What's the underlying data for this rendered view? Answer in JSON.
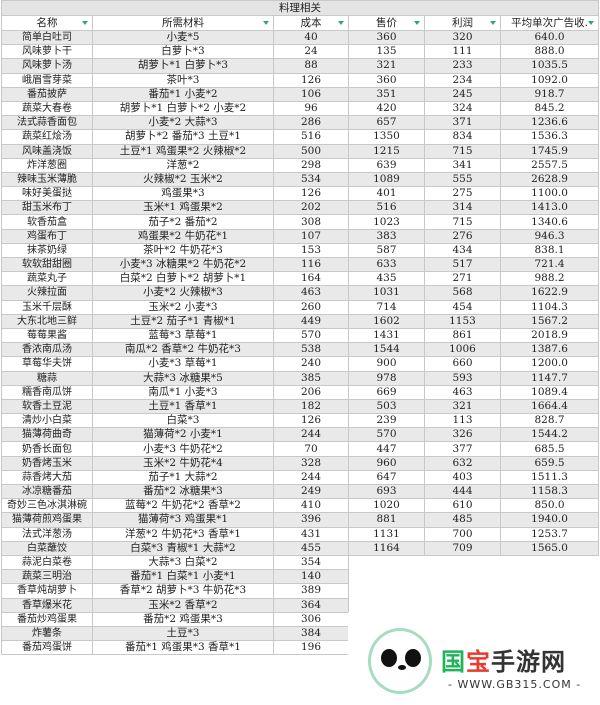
{
  "title": "料理相关",
  "columns": [
    "名称",
    "所需材料",
    "成本",
    "售价",
    "利润",
    "平均单次广告收."
  ],
  "rows": [
    [
      "简单白吐司",
      "小麦*5",
      "40",
      "360",
      "320",
      "640.0"
    ],
    [
      "风味萝卜干",
      "白萝卜*3",
      "24",
      "135",
      "111",
      "888.0"
    ],
    [
      "风味萝卜汤",
      "胡萝卜*1 白萝卜*3",
      "88",
      "321",
      "233",
      "1035.5"
    ],
    [
      "峨眉雪芽菜",
      "茶叶*3",
      "126",
      "360",
      "234",
      "1092.0"
    ],
    [
      "番茄披萨",
      "番茄*1 小麦*2",
      "106",
      "351",
      "245",
      "918.7"
    ],
    [
      "蔬菜大春卷",
      "胡萝卜*1 白萝卜*2 小麦*2",
      "96",
      "420",
      "324",
      "845.2"
    ],
    [
      "法式蒜香面包",
      "小麦*2 大蒜*3",
      "286",
      "657",
      "371",
      "1236.6"
    ],
    [
      "蔬菜红烩汤",
      "胡萝卜*2 番茄*3 土豆*1",
      "516",
      "1350",
      "834",
      "1536.3"
    ],
    [
      "风味盖浇饭",
      "土豆*1 鸡蛋果*2 火辣椒*2",
      "500",
      "1215",
      "715",
      "1745.9"
    ],
    [
      "炸洋葱圈",
      "洋葱*2",
      "298",
      "639",
      "341",
      "2557.5"
    ],
    [
      "辣味玉米薄脆",
      "火辣椒*2 玉米*2",
      "534",
      "1089",
      "555",
      "2628.9"
    ],
    [
      "味好美蛋挞",
      "鸡蛋果*3",
      "126",
      "401",
      "275",
      "1100.0"
    ],
    [
      "甜玉米布丁",
      "玉米*1 鸡蛋果*2",
      "202",
      "516",
      "314",
      "1413.0"
    ],
    [
      "软香茄盒",
      "茄子*2 番茄*2",
      "308",
      "1023",
      "715",
      "1340.6"
    ],
    [
      "鸡蛋布丁",
      "鸡蛋果*2 牛奶花*1",
      "107",
      "383",
      "276",
      "946.3"
    ],
    [
      "抹茶奶绿",
      "茶叶*2 牛奶花*3",
      "153",
      "587",
      "434",
      "838.1"
    ],
    [
      "软软甜甜圈",
      "小麦*3 冰糖果*2 牛奶花*2",
      "116",
      "633",
      "517",
      "721.4"
    ],
    [
      "蔬菜丸子",
      "白菜*2 白萝卜*2 胡萝卜*1",
      "164",
      "435",
      "271",
      "988.2"
    ],
    [
      "火辣拉面",
      "小麦*2 火辣椒*3",
      "463",
      "1031",
      "568",
      "1622.9"
    ],
    [
      "玉米千层酥",
      "玉米*2 小麦*3",
      "260",
      "714",
      "454",
      "1104.3"
    ],
    [
      "大东北地三鲜",
      "土豆*2 茄子*1 青椒*1",
      "449",
      "1602",
      "1153",
      "1567.2"
    ],
    [
      "莓莓果酱",
      "蓝莓*3 草莓*1",
      "570",
      "1431",
      "861",
      "2018.9"
    ],
    [
      "香浓南瓜汤",
      "南瓜*2 香草*2 牛奶花*3",
      "538",
      "1544",
      "1006",
      "1387.6"
    ],
    [
      "草莓华夫饼",
      "小麦*3 草莓*1",
      "240",
      "900",
      "660",
      "1200.0"
    ],
    [
      "糖蒜",
      "大蒜*3 冰糖果*5",
      "385",
      "978",
      "593",
      "1147.7"
    ],
    [
      "糯香南瓜饼",
      "南瓜*1 小麦*3",
      "206",
      "669",
      "463",
      "1089.4"
    ],
    [
      "软香土豆泥",
      "土豆*1 香草*1",
      "182",
      "503",
      "321",
      "1664.4"
    ],
    [
      "清炒小白菜",
      "白菜*3",
      "126",
      "239",
      "113",
      "828.7"
    ],
    [
      "猫薄荷曲奇",
      "猫薄荷*2 小麦*1",
      "244",
      "570",
      "326",
      "1544.2"
    ],
    [
      "奶香长面包",
      "小麦*3 牛奶花*2",
      "70",
      "447",
      "377",
      "685.5"
    ],
    [
      "奶香烤玉米",
      "玉米*2 牛奶花*4",
      "328",
      "960",
      "632",
      "659.5"
    ],
    [
      "蒜香烤大茄",
      "茄子*1 大蒜*2",
      "244",
      "647",
      "403",
      "1511.3"
    ],
    [
      "冰凉糖番茄",
      "番茄*2 冰糖果*3",
      "249",
      "693",
      "444",
      "1158.3"
    ],
    [
      "奇妙三色冰淇淋碗",
      "蓝莓*2 牛奶花*2 香草*2",
      "410",
      "1020",
      "610",
      "850.0"
    ],
    [
      "猫薄荷煎鸡蛋果",
      "猫薄荷*3 鸡蛋果*1",
      "396",
      "881",
      "485",
      "1940.0"
    ],
    [
      "法式洋葱汤",
      "洋葱*2 牛奶花*3 香草*1",
      "431",
      "1131",
      "700",
      "1253.7"
    ],
    [
      "白菜蘸饺",
      "白菜*3 青椒*1 大蒜*2",
      "455",
      "1164",
      "709",
      "1565.0"
    ],
    [
      "蒜泥白菜卷",
      "大蒜*3 白菜*2",
      "354"
    ],
    [
      "蔬菜三明治",
      "番茄*1 白菜*1 小麦*1",
      "140"
    ],
    [
      "香草炖胡萝卜",
      "香草*2 胡萝卜*3 牛奶花*3",
      "389"
    ],
    [
      "香草爆米花",
      "玉米*2 香草*2",
      "364"
    ],
    [
      "番茄炒鸡蛋果",
      "番茄*2 鸡蛋果*3",
      "306"
    ],
    [
      "炸薯条",
      "土豆*3",
      "384"
    ],
    [
      "番茄鸡蛋饼",
      "番茄*1 鸡蛋果*3 香草*1",
      "196"
    ]
  ],
  "watermark": {
    "brand": "国宝手游网",
    "url": "- WWW.GB315.COM -"
  },
  "colors": {
    "filter_arrow": "#2aa876",
    "stripe": "#e9e9e9",
    "brand_green": "#1fb35a",
    "brand_red": "#e63c2f"
  }
}
